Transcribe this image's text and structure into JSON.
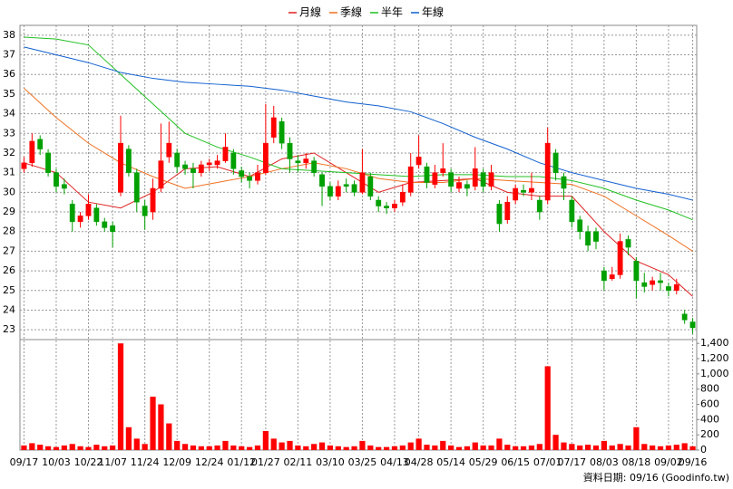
{
  "chart_data": {
    "type": "candlestick",
    "footer": "資料日期: 09/16 (Goodinfo.tw)",
    "up_color": "#ff0000",
    "down_color": "#00a000",
    "volume_color": "#ff0000",
    "xlim": [
      -0.5,
      83.5
    ],
    "xticks": [
      {
        "value": 0,
        "label": "09/17"
      },
      {
        "value": 4,
        "label": "10/03"
      },
      {
        "value": 8,
        "label": "10/22"
      },
      {
        "value": 11,
        "label": "11/07"
      },
      {
        "value": 15,
        "label": "11/24"
      },
      {
        "value": 19,
        "label": "12/09"
      },
      {
        "value": 23,
        "label": "12/24"
      },
      {
        "value": 27,
        "label": "01/12"
      },
      {
        "value": 30,
        "label": "01/27"
      },
      {
        "value": 34,
        "label": "02/11"
      },
      {
        "value": 38,
        "label": "03/10"
      },
      {
        "value": 42,
        "label": "03/25"
      },
      {
        "value": 46,
        "label": "04/13"
      },
      {
        "value": 49,
        "label": "04/28"
      },
      {
        "value": 53,
        "label": "05/14"
      },
      {
        "value": 57,
        "label": "05/29"
      },
      {
        "value": 61,
        "label": "06/15"
      },
      {
        "value": 65,
        "label": "07/01"
      },
      {
        "value": 68,
        "label": "07/17"
      },
      {
        "value": 72,
        "label": "08/03"
      },
      {
        "value": 76,
        "label": "08/18"
      },
      {
        "value": 80,
        "label": "09/02"
      },
      {
        "value": 83,
        "label": "09/16"
      }
    ],
    "ylim": [
      22.5,
      38.5
    ],
    "yticks": [
      23,
      24,
      25,
      26,
      27,
      28,
      29,
      30,
      31,
      32,
      33,
      34,
      35,
      36,
      37,
      38
    ],
    "grid": true,
    "ohlc": [
      [
        31.2,
        31.8,
        31.0,
        31.5
      ],
      [
        31.5,
        33.0,
        31.3,
        32.6
      ],
      [
        32.7,
        32.9,
        31.9,
        32.2
      ],
      [
        32.0,
        32.2,
        30.8,
        31.0
      ],
      [
        31.0,
        31.2,
        30.0,
        30.3
      ],
      [
        30.4,
        30.7,
        29.9,
        30.2
      ],
      [
        29.4,
        29.6,
        28.0,
        28.5
      ],
      [
        28.5,
        29.0,
        28.2,
        28.8
      ],
      [
        28.8,
        29.9,
        28.6,
        29.4
      ],
      [
        29.2,
        29.4,
        28.3,
        28.5
      ],
      [
        28.5,
        28.7,
        28.0,
        28.2
      ],
      [
        28.3,
        28.5,
        27.2,
        28.0
      ],
      [
        30.0,
        33.9,
        29.8,
        32.5
      ],
      [
        32.2,
        32.4,
        30.8,
        31.0
      ],
      [
        31.0,
        31.2,
        29.0,
        29.5
      ],
      [
        29.3,
        29.6,
        28.1,
        28.8
      ],
      [
        29.0,
        30.7,
        28.6,
        30.2
      ],
      [
        30.2,
        33.5,
        30.0,
        31.6
      ],
      [
        31.8,
        33.6,
        31.5,
        32.5
      ],
      [
        32.0,
        32.2,
        31.0,
        31.3
      ],
      [
        31.4,
        31.6,
        30.9,
        31.2
      ],
      [
        31.2,
        31.5,
        30.2,
        31.0
      ],
      [
        31.0,
        31.6,
        30.8,
        31.4
      ],
      [
        31.4,
        31.7,
        31.1,
        31.5
      ],
      [
        31.4,
        31.9,
        31.2,
        31.6
      ],
      [
        31.6,
        33.0,
        31.5,
        32.3
      ],
      [
        32.0,
        32.2,
        30.9,
        31.2
      ],
      [
        31.1,
        31.3,
        30.5,
        30.8
      ],
      [
        30.8,
        31.0,
        30.2,
        30.6
      ],
      [
        30.6,
        31.4,
        30.4,
        31.0
      ],
      [
        31.0,
        34.5,
        30.9,
        32.5
      ],
      [
        32.8,
        34.4,
        32.5,
        33.8
      ],
      [
        33.6,
        33.8,
        32.2,
        32.5
      ],
      [
        32.5,
        32.8,
        31.0,
        31.7
      ],
      [
        31.6,
        31.9,
        31.0,
        31.5
      ],
      [
        31.5,
        32.0,
        31.2,
        31.7
      ],
      [
        31.6,
        31.8,
        30.8,
        31.0
      ],
      [
        30.9,
        31.0,
        29.3,
        30.3
      ],
      [
        30.3,
        30.5,
        29.6,
        29.8
      ],
      [
        29.8,
        30.6,
        29.6,
        30.3
      ],
      [
        30.4,
        30.7,
        30.0,
        30.3
      ],
      [
        30.4,
        30.6,
        29.8,
        30.0
      ],
      [
        30.0,
        32.2,
        29.9,
        31.0
      ],
      [
        30.8,
        31.0,
        29.6,
        29.8
      ],
      [
        29.6,
        29.8,
        29.0,
        29.3
      ],
      [
        29.3,
        29.5,
        28.9,
        29.2
      ],
      [
        29.2,
        29.6,
        29.0,
        29.4
      ],
      [
        29.5,
        30.4,
        29.3,
        30.0
      ],
      [
        30.0,
        32.0,
        29.8,
        31.3
      ],
      [
        31.4,
        32.9,
        31.2,
        31.8
      ],
      [
        31.3,
        31.5,
        30.2,
        30.5
      ],
      [
        30.4,
        31.4,
        30.2,
        31.0
      ],
      [
        31.0,
        32.5,
        30.8,
        31.2
      ],
      [
        31.0,
        31.2,
        30.0,
        30.3
      ],
      [
        30.2,
        30.8,
        30.0,
        30.5
      ],
      [
        30.4,
        30.6,
        29.8,
        30.2
      ],
      [
        30.3,
        32.3,
        30.1,
        31.2
      ],
      [
        31.0,
        31.2,
        30.0,
        30.3
      ],
      [
        30.3,
        31.4,
        30.1,
        31.0
      ],
      [
        29.4,
        29.6,
        28.0,
        28.4
      ],
      [
        28.6,
        29.8,
        28.4,
        29.5
      ],
      [
        29.6,
        30.4,
        29.4,
        30.2
      ],
      [
        30.1,
        30.4,
        29.8,
        30.0
      ],
      [
        30.0,
        31.0,
        29.6,
        30.2
      ],
      [
        29.6,
        29.8,
        28.6,
        29.0
      ],
      [
        29.6,
        33.3,
        29.4,
        32.5
      ],
      [
        32.0,
        32.2,
        30.6,
        31.0
      ],
      [
        30.8,
        31.0,
        29.6,
        30.2
      ],
      [
        29.6,
        29.8,
        28.2,
        28.5
      ],
      [
        28.6,
        28.8,
        27.6,
        28.0
      ],
      [
        28.0,
        28.3,
        27.0,
        27.3
      ],
      [
        28.0,
        28.2,
        27.1,
        27.5
      ],
      [
        26.0,
        26.2,
        25.0,
        25.5
      ],
      [
        25.6,
        26.2,
        25.5,
        25.8
      ],
      [
        25.8,
        27.9,
        25.6,
        27.5
      ],
      [
        27.6,
        27.8,
        26.8,
        27.2
      ],
      [
        26.5,
        26.7,
        24.6,
        25.5
      ],
      [
        25.4,
        25.9,
        24.9,
        25.2
      ],
      [
        25.3,
        25.7,
        25.0,
        25.5
      ],
      [
        25.5,
        25.9,
        25.0,
        25.4
      ],
      [
        25.2,
        25.4,
        24.7,
        25.0
      ],
      [
        25.0,
        25.6,
        24.8,
        25.3
      ],
      [
        23.8,
        24.0,
        23.3,
        23.5
      ],
      [
        23.4,
        23.6,
        22.8,
        23.1
      ]
    ],
    "ma_x": [
      0,
      4,
      8,
      12,
      16,
      20,
      24,
      28,
      32,
      36,
      40,
      44,
      48,
      52,
      56,
      60,
      64,
      68,
      72,
      76,
      80,
      83
    ],
    "series": [
      {
        "name": "月線",
        "color": "#e02020",
        "values": [
          31.5,
          31.0,
          29.5,
          29.2,
          30.0,
          31.2,
          31.3,
          30.8,
          31.7,
          32.0,
          31.0,
          30.0,
          30.5,
          30.6,
          30.7,
          30.0,
          29.8,
          29.8,
          28.0,
          26.5,
          25.8,
          24.7
        ]
      },
      {
        "name": "季線",
        "color": "#f07020",
        "values": [
          35.3,
          33.8,
          32.5,
          31.5,
          30.8,
          30.2,
          30.5,
          30.8,
          31.2,
          31.5,
          31.2,
          30.7,
          30.5,
          30.5,
          30.7,
          30.6,
          30.5,
          30.4,
          29.8,
          28.8,
          27.8,
          27.0
        ]
      },
      {
        "name": "半年",
        "color": "#20c020",
        "values": [
          37.9,
          37.8,
          37.5,
          36.0,
          34.5,
          33.0,
          32.3,
          31.8,
          31.2,
          31.1,
          31.0,
          30.9,
          30.8,
          30.9,
          30.9,
          30.8,
          30.8,
          30.6,
          30.2,
          29.6,
          29.1,
          28.6
        ]
      },
      {
        "name": "年線",
        "color": "#1060d0",
        "values": [
          37.4,
          37.0,
          36.6,
          36.1,
          35.8,
          35.6,
          35.5,
          35.4,
          35.2,
          34.9,
          34.6,
          34.4,
          34.1,
          33.5,
          32.8,
          32.2,
          31.5,
          31.0,
          30.6,
          30.2,
          29.9,
          29.6
        ]
      }
    ],
    "volume": {
      "ylim": [
        0,
        1450
      ],
      "yticks": [
        0,
        200,
        400,
        600,
        800,
        {
          "value": 1000,
          "label": "1,000"
        },
        {
          "value": 1200,
          "label": "1,200"
        },
        {
          "value": 1400,
          "label": "1,400"
        }
      ],
      "values": [
        60,
        90,
        70,
        50,
        40,
        60,
        80,
        50,
        40,
        70,
        50,
        60,
        1400,
        300,
        150,
        80,
        700,
        600,
        350,
        120,
        80,
        60,
        50,
        50,
        60,
        120,
        60,
        50,
        40,
        60,
        250,
        150,
        100,
        120,
        60,
        50,
        80,
        100,
        60,
        50,
        40,
        50,
        120,
        60,
        40,
        40,
        50,
        60,
        100,
        150,
        70,
        60,
        120,
        60,
        40,
        50,
        100,
        60,
        60,
        150,
        70,
        50,
        50,
        60,
        80,
        1100,
        200,
        100,
        80,
        60,
        70,
        60,
        120,
        60,
        80,
        60,
        300,
        80,
        60,
        50,
        60,
        70,
        90,
        50
      ]
    }
  }
}
